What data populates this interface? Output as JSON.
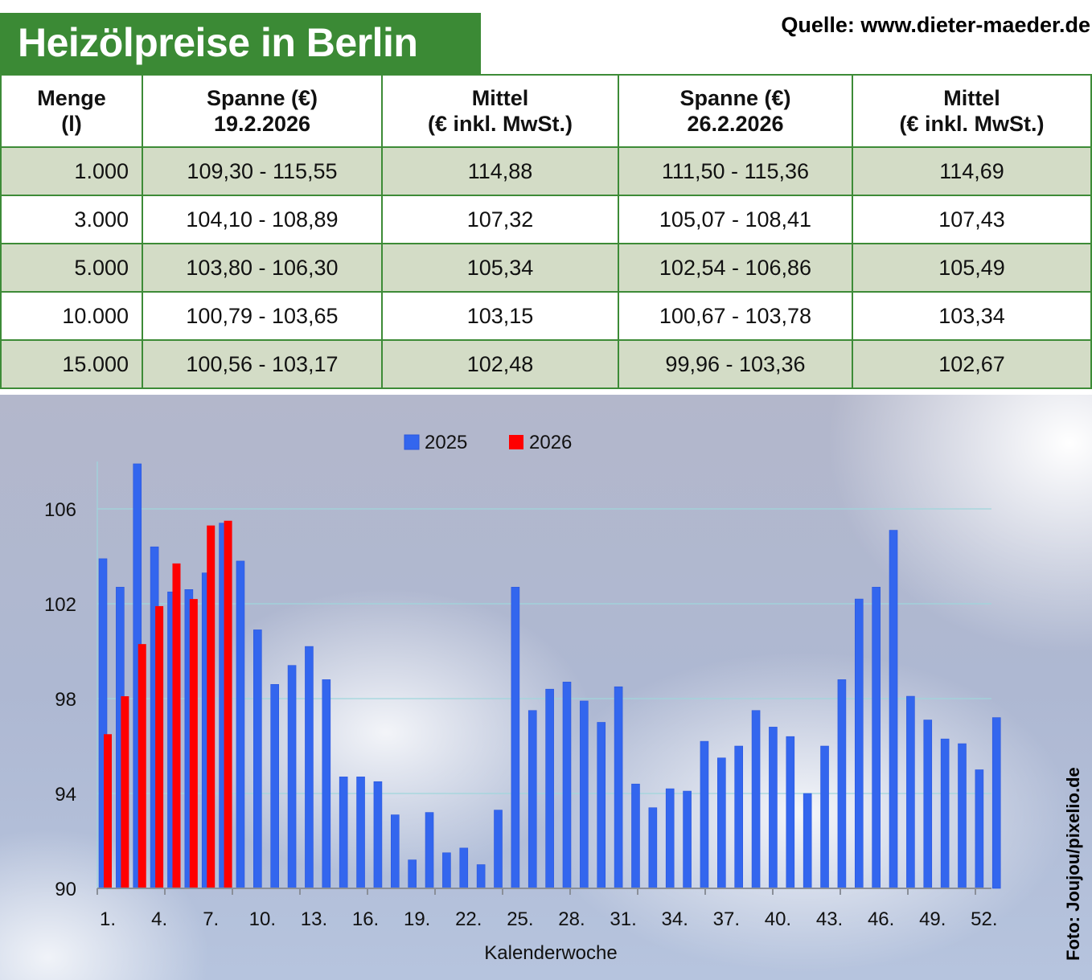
{
  "header": {
    "title": "Heizölpreise in Berlin",
    "source": "Quelle: www.dieter-maeder.de"
  },
  "table": {
    "columns": [
      [
        "Menge",
        "(l)"
      ],
      [
        "Spanne (€)",
        "19.2.2026"
      ],
      [
        "Mittel",
        "(€ inkl. MwSt.)"
      ],
      [
        "Spanne (€)",
        "26.2.2026"
      ],
      [
        "Mittel",
        "(€ inkl. MwSt.)"
      ]
    ],
    "rows": [
      [
        "1.000",
        "109,30 - 115,55",
        "114,88",
        "111,50 - 115,36",
        "114,69"
      ],
      [
        "3.000",
        "104,10 - 108,89",
        "107,32",
        "105,07 - 108,41",
        "107,43"
      ],
      [
        "5.000",
        "103,80 - 106,30",
        "105,34",
        "102,54 - 106,86",
        "105,49"
      ],
      [
        "10.000",
        "100,79 - 103,65",
        "103,15",
        "100,67 - 103,78",
        "103,34"
      ],
      [
        "15.000",
        "100,56 - 103,17",
        "102,48",
        "99,96 - 103,36",
        "102,67"
      ]
    ]
  },
  "credit": "Foto: Joujou/pixelio.de",
  "chart_data": {
    "type": "bar",
    "xlabel": "Kalenderwoche",
    "ylabel": "",
    "ylim": [
      90,
      108
    ],
    "yticks": [
      90,
      94,
      98,
      102,
      106
    ],
    "xtick_labels": [
      "1.",
      "4.",
      "7.",
      "10.",
      "13.",
      "16.",
      "19.",
      "22.",
      "25.",
      "28.",
      "31.",
      "34.",
      "37.",
      "40.",
      "43.",
      "46.",
      "49.",
      "52."
    ],
    "legend": {
      "placement": "top-center"
    },
    "grid": true,
    "series": [
      {
        "name": "2025",
        "color": "#3366ee",
        "values": [
          103.9,
          102.7,
          107.9,
          104.4,
          102.5,
          102.6,
          103.3,
          105.4,
          103.8,
          100.9,
          98.6,
          99.4,
          100.2,
          98.8,
          94.7,
          94.7,
          94.5,
          93.1,
          91.2,
          93.2,
          91.5,
          91.7,
          91.0,
          93.3,
          102.7,
          97.5,
          98.4,
          98.7,
          97.9,
          97.0,
          98.5,
          94.4,
          93.4,
          94.2,
          94.1,
          96.2,
          95.5,
          96.0,
          97.5,
          96.8,
          96.4,
          94.0,
          96.0,
          98.8,
          102.2,
          102.7,
          105.1,
          98.1,
          97.1,
          96.3,
          96.1,
          95.0,
          97.2
        ]
      },
      {
        "name": "2026",
        "color": "#ff0000",
        "values": [
          96.5,
          98.1,
          100.3,
          101.9,
          103.7,
          102.2,
          105.3,
          105.5
        ]
      }
    ]
  }
}
